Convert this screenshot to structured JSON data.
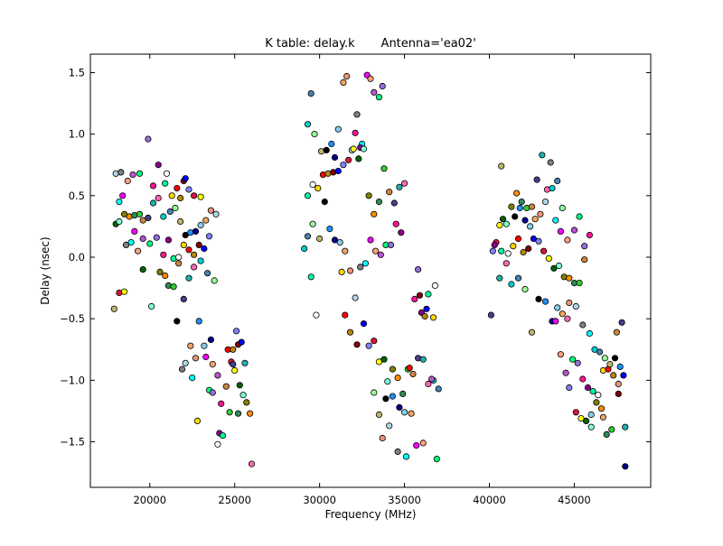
{
  "chart_data": {
    "type": "scatter",
    "title": "K table: delay.k       Antenna='ea02'",
    "xlabel": "Frequency (MHz)",
    "ylabel": "Delay (nsec)",
    "xlim": [
      16500,
      49500
    ],
    "ylim": [
      -1.87,
      1.65
    ],
    "grid": false,
    "legend": "none",
    "x_ticks": [
      20000,
      25000,
      30000,
      35000,
      40000,
      45000
    ],
    "x_tick_labels": [
      "20000",
      "25000",
      "30000",
      "35000",
      "40000",
      "45000"
    ],
    "y_ticks": [
      -1.5,
      -1.0,
      -0.5,
      0.0,
      0.5,
      1.0,
      1.5
    ],
    "y_tick_labels": [
      "−1.5",
      "−1.0",
      "−0.5",
      "0.0",
      "0.5",
      "1.0",
      "1.5"
    ],
    "marker": "circle",
    "marker_colors": [
      "#ffffff",
      "#000000",
      "#8080ff",
      "#add8e6",
      "#ff8c00",
      "#00ff7f",
      "#ff69b4",
      "#ffd700",
      "#1e90ff",
      "#dc143c",
      "#808080",
      "#2e8b57",
      "#9370db",
      "#00ced1",
      "#ff0000",
      "#00008b",
      "#ffff00",
      "#00ffff",
      "#32cd32",
      "#ff1493",
      "#4682b4",
      "#b8860b",
      "#87ceeb",
      "#006400",
      "#ff00ff",
      "#cd853f",
      "#8b008b",
      "#98fb98",
      "#800000",
      "#f4a460",
      "#7fffd4",
      "#ffa07a",
      "#483d8b",
      "#00fa9a",
      "#bdb76b",
      "#0000ff",
      "#e9967a",
      "#808000",
      "#ba55d3",
      "#20b2aa"
    ],
    "points": [
      [
        18000,
        0.68
      ],
      [
        18300,
        0.69
      ],
      [
        18200,
        0.45
      ],
      [
        18400,
        0.5
      ],
      [
        18700,
        0.62
      ],
      [
        19000,
        0.67
      ],
      [
        19400,
        0.68
      ],
      [
        19900,
        0.96
      ],
      [
        20200,
        0.58
      ],
      [
        20500,
        0.75
      ],
      [
        20900,
        0.6
      ],
      [
        21000,
        0.68
      ],
      [
        21300,
        0.5
      ],
      [
        21600,
        0.56
      ],
      [
        21800,
        0.48
      ],
      [
        22000,
        0.62
      ],
      [
        22100,
        0.64
      ],
      [
        22300,
        0.55
      ],
      [
        22600,
        0.5
      ],
      [
        23000,
        0.49
      ],
      [
        18000,
        0.27
      ],
      [
        18200,
        0.29
      ],
      [
        18500,
        0.35
      ],
      [
        18800,
        0.33
      ],
      [
        19100,
        0.34
      ],
      [
        19400,
        0.35
      ],
      [
        19600,
        0.3
      ],
      [
        19900,
        0.32
      ],
      [
        20200,
        0.44
      ],
      [
        20500,
        0.48
      ],
      [
        20800,
        0.33
      ],
      [
        21200,
        0.37
      ],
      [
        21500,
        0.4
      ],
      [
        21800,
        0.29
      ],
      [
        22100,
        0.18
      ],
      [
        22400,
        0.2
      ],
      [
        22700,
        0.21
      ],
      [
        23000,
        0.26
      ],
      [
        23300,
        0.3
      ],
      [
        23600,
        0.38
      ],
      [
        23900,
        0.35
      ],
      [
        18600,
        0.1
      ],
      [
        18900,
        0.12
      ],
      [
        19100,
        0.21
      ],
      [
        19300,
        0.05
      ],
      [
        19600,
        0.15
      ],
      [
        20000,
        0.11
      ],
      [
        20400,
        0.16
      ],
      [
        20800,
        0.02
      ],
      [
        21100,
        0.14
      ],
      [
        21400,
        -0.01
      ],
      [
        21700,
        0.0
      ],
      [
        22000,
        0.1
      ],
      [
        22300,
        0.06
      ],
      [
        22600,
        0.02
      ],
      [
        22900,
        0.1
      ],
      [
        23200,
        0.07
      ],
      [
        23500,
        0.17
      ],
      [
        18200,
        -0.29
      ],
      [
        18500,
        -0.28
      ],
      [
        19600,
        -0.1
      ],
      [
        20100,
        -0.4
      ],
      [
        20600,
        -0.12
      ],
      [
        20900,
        -0.15
      ],
      [
        21100,
        -0.23
      ],
      [
        21400,
        -0.24
      ],
      [
        21700,
        -0.05
      ],
      [
        22000,
        -0.34
      ],
      [
        22300,
        -0.17
      ],
      [
        22600,
        -0.08
      ],
      [
        23000,
        -0.03
      ],
      [
        23400,
        -0.13
      ],
      [
        23800,
        -0.19
      ],
      [
        17900,
        -0.42
      ],
      [
        21600,
        -0.52
      ],
      [
        22900,
        -0.52
      ],
      [
        23600,
        -0.67
      ],
      [
        23200,
        -0.72
      ],
      [
        22400,
        -0.72
      ],
      [
        22700,
        -0.82
      ],
      [
        22100,
        -0.86
      ],
      [
        21900,
        -0.91
      ],
      [
        22500,
        -0.98
      ],
      [
        23300,
        -0.81
      ],
      [
        23700,
        -0.87
      ],
      [
        24000,
        -0.96
      ],
      [
        23500,
        -1.08
      ],
      [
        23700,
        -1.1
      ],
      [
        24200,
        -1.19
      ],
      [
        24100,
        -1.43
      ],
      [
        24300,
        -1.45
      ],
      [
        24000,
        -1.52
      ],
      [
        22800,
        -1.33
      ],
      [
        24600,
        -0.75
      ],
      [
        24900,
        -0.75
      ],
      [
        25200,
        -0.71
      ],
      [
        25400,
        -0.69
      ],
      [
        25100,
        -0.6
      ],
      [
        24800,
        -0.85
      ],
      [
        25000,
        -0.92
      ],
      [
        25300,
        -1.04
      ],
      [
        25500,
        -1.12
      ],
      [
        25700,
        -1.18
      ],
      [
        25900,
        -1.27
      ],
      [
        25200,
        -1.27
      ],
      [
        24700,
        -1.26
      ],
      [
        24500,
        -1.05
      ],
      [
        24900,
        -0.87
      ],
      [
        25600,
        -0.86
      ],
      [
        26000,
        -1.68
      ],
      [
        29300,
        1.08
      ],
      [
        29500,
        1.33
      ],
      [
        29700,
        1.0
      ],
      [
        30100,
        0.86
      ],
      [
        30400,
        0.87
      ],
      [
        30700,
        0.92
      ],
      [
        30900,
        0.81
      ],
      [
        31100,
        1.04
      ],
      [
        31400,
        1.42
      ],
      [
        31600,
        1.47
      ],
      [
        31900,
        0.87
      ],
      [
        32200,
        1.16
      ],
      [
        32500,
        0.92
      ],
      [
        32800,
        1.48
      ],
      [
        33000,
        1.45
      ],
      [
        33200,
        1.34
      ],
      [
        33500,
        1.3
      ],
      [
        33700,
        1.39
      ],
      [
        32100,
        1.01
      ],
      [
        32400,
        0.89
      ],
      [
        29300,
        0.5
      ],
      [
        29600,
        0.59
      ],
      [
        29900,
        0.56
      ],
      [
        30200,
        0.67
      ],
      [
        30500,
        0.68
      ],
      [
        30800,
        0.69
      ],
      [
        31100,
        0.7
      ],
      [
        31400,
        0.75
      ],
      [
        31700,
        0.79
      ],
      [
        32000,
        0.88
      ],
      [
        32300,
        0.8
      ],
      [
        32600,
        0.88
      ],
      [
        32900,
        0.5
      ],
      [
        33200,
        0.35
      ],
      [
        33500,
        0.45
      ],
      [
        33800,
        0.72
      ],
      [
        34100,
        0.53
      ],
      [
        34400,
        0.44
      ],
      [
        34700,
        0.57
      ],
      [
        35000,
        0.6
      ],
      [
        29100,
        0.07
      ],
      [
        29300,
        0.17
      ],
      [
        29600,
        0.27
      ],
      [
        30000,
        0.15
      ],
      [
        30300,
        0.45
      ],
      [
        30600,
        0.23
      ],
      [
        30900,
        0.14
      ],
      [
        31200,
        0.12
      ],
      [
        31500,
        0.05
      ],
      [
        31800,
        -0.11
      ],
      [
        32100,
        -0.33
      ],
      [
        32400,
        -0.08
      ],
      [
        32700,
        -0.05
      ],
      [
        33000,
        0.14
      ],
      [
        33300,
        0.05
      ],
      [
        33600,
        0.02
      ],
      [
        33900,
        0.1
      ],
      [
        34200,
        0.1
      ],
      [
        34500,
        0.27
      ],
      [
        34800,
        0.2
      ],
      [
        29500,
        -0.16
      ],
      [
        29800,
        -0.47
      ],
      [
        31300,
        -0.12
      ],
      [
        31500,
        -0.47
      ],
      [
        31800,
        -0.61
      ],
      [
        32200,
        -0.71
      ],
      [
        32600,
        -0.54
      ],
      [
        32900,
        -0.72
      ],
      [
        33200,
        -0.68
      ],
      [
        33500,
        -0.85
      ],
      [
        33800,
        -0.83
      ],
      [
        34000,
        -1.01
      ],
      [
        34300,
        -0.91
      ],
      [
        34600,
        -0.98
      ],
      [
        34900,
        -1.11
      ],
      [
        35200,
        -0.91
      ],
      [
        35500,
        -0.95
      ],
      [
        35800,
        -0.82
      ],
      [
        36100,
        -0.83
      ],
      [
        36400,
        -1.03
      ],
      [
        36700,
        -1.0
      ],
      [
        37000,
        -1.07
      ],
      [
        33200,
        -1.1
      ],
      [
        33500,
        -1.28
      ],
      [
        33900,
        -1.15
      ],
      [
        34300,
        -1.13
      ],
      [
        34700,
        -1.22
      ],
      [
        35000,
        -1.26
      ],
      [
        35400,
        -1.27
      ],
      [
        33700,
        -1.47
      ],
      [
        34100,
        -1.37
      ],
      [
        34600,
        -1.58
      ],
      [
        35100,
        -1.62
      ],
      [
        35700,
        -1.53
      ],
      [
        36100,
        -1.51
      ],
      [
        36600,
        -0.99
      ],
      [
        36900,
        -1.64
      ],
      [
        35800,
        -0.1
      ],
      [
        35600,
        -0.34
      ],
      [
        36000,
        -0.45
      ],
      [
        36400,
        -0.3
      ],
      [
        36800,
        -0.23
      ],
      [
        36700,
        -0.49
      ],
      [
        35300,
        -0.9
      ],
      [
        36200,
        -0.48
      ],
      [
        35900,
        -0.31
      ],
      [
        36300,
        -0.42
      ],
      [
        40200,
        0.05
      ],
      [
        40400,
        0.12
      ],
      [
        40600,
        0.26
      ],
      [
        40800,
        0.31
      ],
      [
        41000,
        0.27
      ],
      [
        41300,
        0.41
      ],
      [
        41600,
        0.52
      ],
      [
        41900,
        0.45
      ],
      [
        42200,
        0.4
      ],
      [
        42500,
        0.41
      ],
      [
        42800,
        0.63
      ],
      [
        43100,
        0.83
      ],
      [
        43400,
        0.55
      ],
      [
        43700,
        0.56
      ],
      [
        44000,
        0.62
      ],
      [
        44300,
        0.4
      ],
      [
        40700,
        0.74
      ],
      [
        41500,
        0.33
      ],
      [
        41800,
        0.4
      ],
      [
        42100,
        0.3
      ],
      [
        42400,
        0.25
      ],
      [
        42700,
        0.31
      ],
      [
        43000,
        0.35
      ],
      [
        43300,
        0.45
      ],
      [
        43600,
        0.77
      ],
      [
        43900,
        0.3
      ],
      [
        44200,
        0.21
      ],
      [
        44600,
        0.14
      ],
      [
        45000,
        0.22
      ],
      [
        45300,
        0.33
      ],
      [
        45600,
        0.09
      ],
      [
        45900,
        0.18
      ],
      [
        40300,
        0.1
      ],
      [
        40700,
        0.05
      ],
      [
        41100,
        0.03
      ],
      [
        41400,
        0.09
      ],
      [
        41700,
        0.15
      ],
      [
        42000,
        0.04
      ],
      [
        42300,
        0.07
      ],
      [
        42600,
        0.15
      ],
      [
        42900,
        0.13
      ],
      [
        43200,
        0.05
      ],
      [
        43500,
        -0.01
      ],
      [
        43800,
        -0.09
      ],
      [
        44100,
        -0.07
      ],
      [
        44400,
        -0.16
      ],
      [
        44700,
        -0.17
      ],
      [
        45000,
        -0.21
      ],
      [
        45300,
        -0.21
      ],
      [
        45600,
        -0.02
      ],
      [
        40100,
        -0.47
      ],
      [
        40600,
        -0.17
      ],
      [
        41000,
        -0.05
      ],
      [
        41300,
        -0.22
      ],
      [
        41700,
        -0.17
      ],
      [
        42100,
        -0.26
      ],
      [
        42500,
        -0.61
      ],
      [
        42900,
        -0.34
      ],
      [
        43300,
        -0.36
      ],
      [
        43700,
        -0.52
      ],
      [
        44000,
        -0.41
      ],
      [
        44300,
        -0.46
      ],
      [
        44700,
        -0.37
      ],
      [
        45100,
        -0.4
      ],
      [
        45500,
        -0.55
      ],
      [
        45900,
        -0.62
      ],
      [
        43900,
        -0.52
      ],
      [
        44200,
        -0.79
      ],
      [
        44500,
        -0.94
      ],
      [
        44900,
        -0.83
      ],
      [
        45200,
        -0.86
      ],
      [
        45500,
        -0.99
      ],
      [
        45800,
        -1.06
      ],
      [
        46100,
        -1.09
      ],
      [
        46400,
        -1.12
      ],
      [
        46700,
        -0.92
      ],
      [
        47000,
        -0.91
      ],
      [
        47300,
        -0.96
      ],
      [
        47600,
        -1.11
      ],
      [
        47900,
        -0.96
      ],
      [
        44700,
        -1.06
      ],
      [
        45100,
        -1.26
      ],
      [
        45400,
        -1.31
      ],
      [
        45700,
        -1.33
      ],
      [
        46000,
        -1.38
      ],
      [
        46300,
        -1.18
      ],
      [
        46600,
        -1.23
      ],
      [
        46900,
        -1.44
      ],
      [
        47200,
        -1.4
      ],
      [
        47500,
        -0.61
      ],
      [
        47800,
        -0.53
      ],
      [
        48000,
        -1.38
      ],
      [
        44600,
        -0.5
      ],
      [
        46200,
        -0.75
      ],
      [
        46500,
        -0.77
      ],
      [
        46800,
        -0.82
      ],
      [
        47100,
        -0.87
      ],
      [
        47400,
        -0.82
      ],
      [
        47700,
        -0.89
      ],
      [
        48000,
        -1.7
      ],
      [
        46000,
        -1.28
      ],
      [
        46700,
        -1.3
      ],
      [
        47600,
        -1.03
      ]
    ]
  }
}
